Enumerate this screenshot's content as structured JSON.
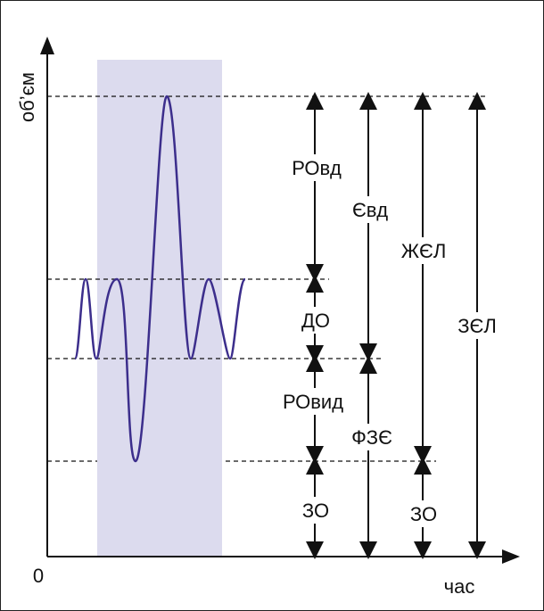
{
  "diagram": {
    "y_axis_label": "об’єм",
    "x_axis_label": "час",
    "origin_label": "0",
    "measures": {
      "rovd": "РОвд",
      "do": "ДО",
      "rovyd": "РОвид",
      "zo": "ЗО",
      "yevd": "Євд",
      "fze": "ФЗЄ",
      "zhel": "ЖЄЛ",
      "zo2": "ЗО",
      "zel": "ЗЄЛ"
    },
    "colors": {
      "curve": "#3c2e8c",
      "highlight": "#dcdbee",
      "axis": "#111111"
    }
  }
}
